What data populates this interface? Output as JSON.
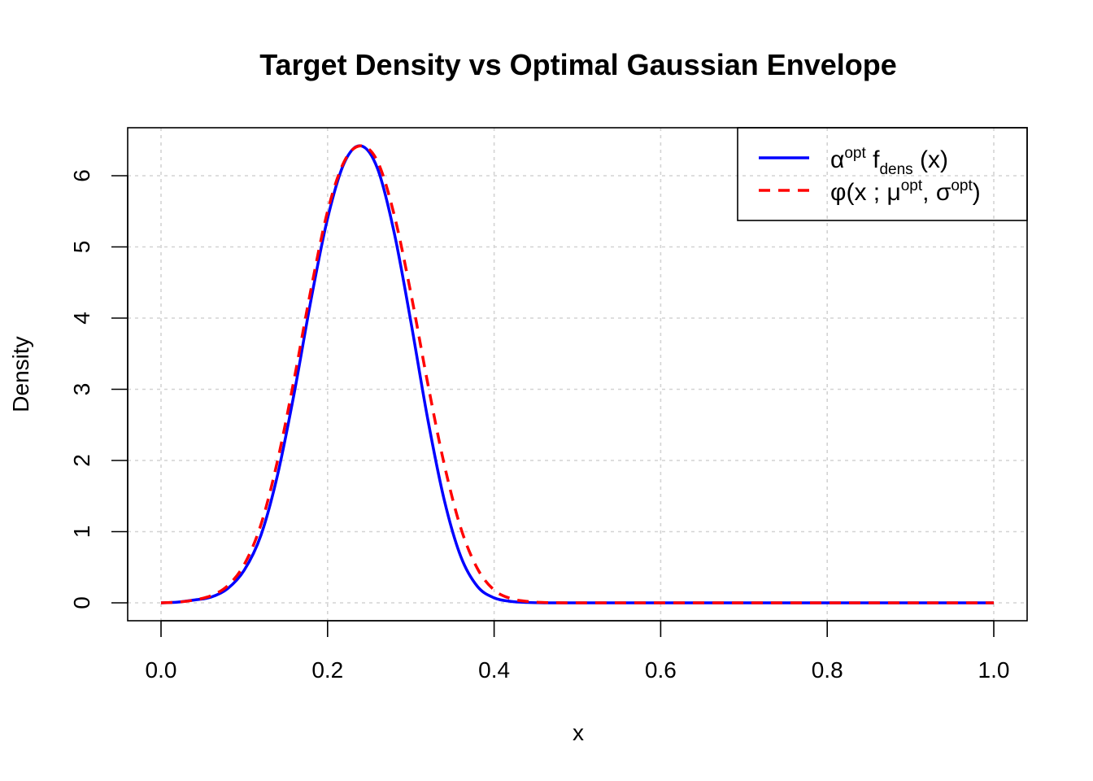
{
  "chart_data": {
    "type": "line",
    "title": "Target Density vs Optimal Gaussian Envelope",
    "xlabel": "x",
    "ylabel": "Density",
    "xlim": [
      0.0,
      1.0
    ],
    "ylim": [
      0,
      6.4
    ],
    "grid": true,
    "legend_position": "top-right",
    "x_ticks": [
      {
        "value": 0.0,
        "label": "0.0"
      },
      {
        "value": 0.2,
        "label": "0.2"
      },
      {
        "value": 0.4,
        "label": "0.4"
      },
      {
        "value": 0.6,
        "label": "0.6"
      },
      {
        "value": 0.8,
        "label": "0.8"
      },
      {
        "value": 1.0,
        "label": "1.0"
      }
    ],
    "y_ticks": [
      {
        "value": 0,
        "label": "0"
      },
      {
        "value": 1,
        "label": "1"
      },
      {
        "value": 2,
        "label": "2"
      },
      {
        "value": 3,
        "label": "3"
      },
      {
        "value": 4,
        "label": "4"
      },
      {
        "value": 5,
        "label": "5"
      },
      {
        "value": 6,
        "label": "6"
      }
    ],
    "series": [
      {
        "name": "alpha-opt-f-dens",
        "legend": {
          "base": "α",
          "sup": "opt",
          "mid": " f",
          "sub": "dens",
          "tail": " (x)"
        },
        "color": "#0000ff",
        "dash": "solid",
        "x": [
          0.0,
          0.02,
          0.04,
          0.06,
          0.08,
          0.1,
          0.12,
          0.14,
          0.16,
          0.18,
          0.2,
          0.22,
          0.24,
          0.26,
          0.28,
          0.3,
          0.32,
          0.34,
          0.36,
          0.38,
          0.4,
          0.42,
          0.44,
          0.46,
          0.5,
          0.6,
          0.7,
          0.8,
          0.9,
          1.0
        ],
        "y": [
          0.0,
          0.01,
          0.04,
          0.08,
          0.2,
          0.46,
          0.95,
          1.8,
          2.95,
          4.25,
          5.4,
          6.18,
          6.42,
          6.1,
          5.2,
          3.95,
          2.6,
          1.45,
          0.65,
          0.23,
          0.07,
          0.02,
          0.005,
          0.0,
          0.0,
          0.0,
          0.0,
          0.0,
          0.0,
          0.0
        ]
      },
      {
        "name": "phi-gaussian-envelope",
        "legend": {
          "pre": "φ(x ; μ",
          "sup1": "opt",
          "mid": ", σ",
          "sup2": "opt",
          "tail": ")"
        },
        "color": "#ff0000",
        "dash": "dashed",
        "x": [
          0.0,
          0.02,
          0.04,
          0.06,
          0.08,
          0.1,
          0.12,
          0.14,
          0.16,
          0.18,
          0.2,
          0.22,
          0.24,
          0.26,
          0.28,
          0.3,
          0.32,
          0.34,
          0.36,
          0.38,
          0.4,
          0.42,
          0.44,
          0.46,
          0.5,
          0.6,
          0.7,
          0.8,
          0.9,
          1.0
        ],
        "y": [
          0.0,
          0.01,
          0.04,
          0.1,
          0.24,
          0.54,
          1.1,
          2.0,
          3.15,
          4.4,
          5.5,
          6.2,
          6.42,
          6.2,
          5.45,
          4.35,
          3.1,
          1.95,
          1.05,
          0.48,
          0.18,
          0.06,
          0.02,
          0.005,
          0.0,
          0.0,
          0.0,
          0.0,
          0.0,
          0.0
        ]
      }
    ]
  }
}
